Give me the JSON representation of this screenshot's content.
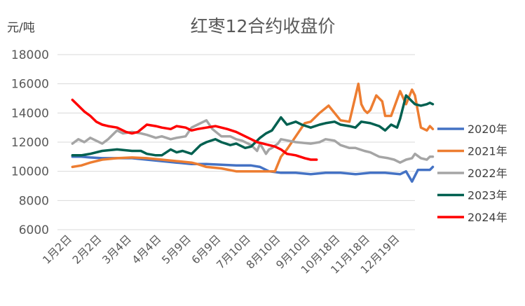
{
  "chart_data": {
    "type": "line",
    "title": "红枣12合约收盘价",
    "ylabel": "元/吨",
    "xlabel": "",
    "ylim": [
      6000,
      18000
    ],
    "yticks": [
      6000,
      8000,
      10000,
      12000,
      14000,
      16000,
      18000
    ],
    "grid": "horizontal",
    "legend_position": "right",
    "categories": [
      "1月2日",
      "2月2日",
      "3月4日",
      "4月4日",
      "5月9日",
      "6月9日",
      "7月10日",
      "8月10日",
      "9月10日",
      "10月18日",
      "11月18日",
      "12月19日"
    ],
    "series": [
      {
        "name": "2020年",
        "color": "#4472C4",
        "x": [
          0,
          0.3,
          0.6,
          1.0,
          1.5,
          2.0,
          2.5,
          3.0,
          3.5,
          4.0,
          4.5,
          5.0,
          5.5,
          6.0,
          6.3,
          6.6,
          7.0,
          7.5,
          8.0,
          8.5,
          9.0,
          9.5,
          10.0,
          10.5,
          11.0,
          11.2,
          11.4,
          11.6,
          11.8,
          12.0,
          12.1
        ],
        "values": [
          11000,
          11000,
          10950,
          10900,
          10900,
          10900,
          10800,
          10700,
          10600,
          10500,
          10500,
          10450,
          10400,
          10400,
          10300,
          10000,
          9900,
          9900,
          9800,
          9900,
          9900,
          9800,
          9900,
          9900,
          9800,
          10000,
          9300,
          10100,
          10100,
          10100,
          10300
        ]
      },
      {
        "name": "2021年",
        "color": "#ED7D31",
        "x": [
          0,
          0.3,
          0.6,
          1.0,
          1.5,
          2.0,
          2.5,
          3.0,
          3.5,
          4.0,
          4.2,
          4.5,
          5.0,
          5.5,
          6.0,
          6.5,
          6.8,
          7.0,
          7.2,
          7.5,
          7.8,
          8.0,
          8.3,
          8.6,
          9.0,
          9.3,
          9.6,
          9.7,
          9.8,
          9.9,
          10.0,
          10.2,
          10.4,
          10.5,
          10.7,
          11.0,
          11.2,
          11.4,
          11.5,
          11.7,
          11.9,
          12.0,
          12.1
        ],
        "values": [
          10300,
          10400,
          10600,
          10800,
          10900,
          10950,
          10900,
          10800,
          10700,
          10600,
          10500,
          10300,
          10200,
          10000,
          10000,
          10000,
          10000,
          11000,
          11500,
          12400,
          13300,
          13400,
          14000,
          14500,
          13500,
          13400,
          16000,
          14600,
          14200,
          14000,
          14200,
          15200,
          14800,
          13800,
          13800,
          15500,
          14600,
          15600,
          15200,
          13000,
          12800,
          13100,
          12900
        ]
      },
      {
        "name": "2022年",
        "color": "#A5A5A5",
        "x": [
          0,
          0.2,
          0.4,
          0.6,
          0.8,
          1.0,
          1.2,
          1.5,
          1.7,
          2.0,
          2.3,
          2.5,
          2.8,
          3.0,
          3.3,
          3.5,
          3.8,
          4.0,
          4.2,
          4.5,
          4.7,
          5.0,
          5.3,
          5.5,
          5.7,
          6.0,
          6.2,
          6.3,
          6.5,
          6.6,
          6.7,
          6.9,
          7.0,
          7.5,
          8.0,
          8.3,
          8.5,
          8.8,
          9.0,
          9.3,
          9.5,
          9.8,
          10.0,
          10.3,
          10.6,
          10.8,
          11.0,
          11.2,
          11.4,
          11.5,
          11.7,
          11.9,
          12.0,
          12.1
        ],
        "values": [
          11900,
          12200,
          12000,
          12300,
          12100,
          11900,
          12200,
          12800,
          12600,
          12700,
          12600,
          12500,
          12300,
          12400,
          12200,
          12300,
          12400,
          13000,
          13200,
          13500,
          12900,
          12400,
          12400,
          12200,
          12100,
          11800,
          11400,
          11900,
          11200,
          11500,
          11600,
          11900,
          12200,
          12000,
          11900,
          12000,
          12200,
          12100,
          11800,
          11600,
          11600,
          11400,
          11300,
          11000,
          10900,
          10800,
          10600,
          10800,
          10900,
          11200,
          10900,
          10800,
          11000,
          11000
        ]
      },
      {
        "name": "2023年",
        "color": "#006050",
        "x": [
          0,
          0.3,
          0.6,
          1.0,
          1.5,
          2.0,
          2.3,
          2.5,
          2.8,
          3.0,
          3.3,
          3.5,
          3.7,
          4.0,
          4.3,
          4.5,
          4.8,
          5.0,
          5.3,
          5.5,
          5.8,
          6.0,
          6.3,
          6.5,
          6.7,
          7.0,
          7.2,
          7.5,
          7.7,
          8.0,
          8.3,
          8.5,
          8.8,
          9.0,
          9.3,
          9.5,
          9.7,
          10.0,
          10.3,
          10.5,
          10.7,
          10.9,
          11.0,
          11.2,
          11.4,
          11.5,
          11.7,
          11.9,
          12.0,
          12.1
        ],
        "values": [
          11100,
          11100,
          11200,
          11400,
          11500,
          11400,
          11400,
          11200,
          11100,
          11100,
          11500,
          11300,
          11400,
          11200,
          11800,
          12000,
          12200,
          12000,
          11800,
          11900,
          11600,
          11700,
          12300,
          12600,
          12800,
          13700,
          13200,
          13400,
          13200,
          13000,
          13200,
          13300,
          13400,
          13200,
          13100,
          13000,
          13400,
          13300,
          13100,
          12800,
          13200,
          13000,
          13600,
          15200,
          14800,
          14600,
          14500,
          14600,
          14700,
          14600
        ]
      },
      {
        "name": "2024年",
        "color": "#FF0000",
        "x": [
          0,
          0.2,
          0.4,
          0.6,
          0.8,
          1.0,
          1.2,
          1.5,
          1.8,
          2.0,
          2.2,
          2.5,
          2.8,
          3.0,
          3.3,
          3.5,
          3.8,
          4.0,
          4.2,
          4.5,
          4.8,
          5.0,
          5.2,
          5.5,
          5.8,
          6.0,
          6.2,
          6.4,
          6.6,
          6.8,
          7.0,
          7.2,
          7.5,
          7.8,
          8.0,
          8.2
        ],
        "values": [
          14900,
          14500,
          14100,
          13800,
          13400,
          13200,
          13100,
          13000,
          12700,
          12600,
          12700,
          13200,
          13100,
          13000,
          12900,
          13100,
          13000,
          12800,
          12900,
          13000,
          13100,
          13000,
          12900,
          12700,
          12400,
          12200,
          12000,
          11900,
          11800,
          11700,
          11500,
          11200,
          11100,
          10900,
          10800,
          10800
        ]
      }
    ]
  }
}
